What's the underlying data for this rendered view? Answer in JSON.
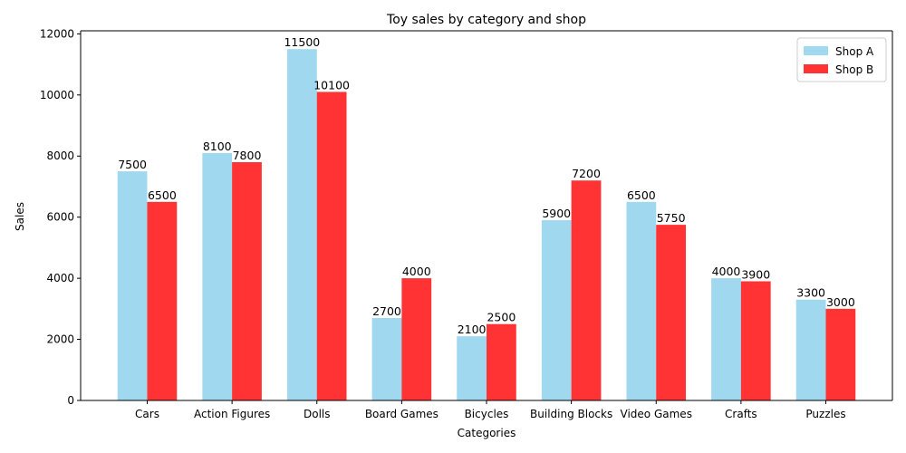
{
  "chart_data": {
    "type": "bar",
    "title": "Toy sales by category and shop",
    "xlabel": "Categories",
    "ylabel": "Sales",
    "categories": [
      "Cars",
      "Action Figures",
      "Dolls",
      "Board Games",
      "Bicycles",
      "Building Blocks",
      "Video Games",
      "Crafts",
      "Puzzles"
    ],
    "series": [
      {
        "name": "Shop A",
        "color": "#87CEEB",
        "values": [
          7500,
          8100,
          11500,
          2700,
          2100,
          5900,
          6500,
          4000,
          3300
        ]
      },
      {
        "name": "Shop B",
        "color": "#FF0000",
        "values": [
          6500,
          7800,
          10100,
          4000,
          2500,
          7200,
          5750,
          3900,
          3000
        ]
      }
    ],
    "ylim": [
      0,
      12100
    ],
    "yticks": [
      0,
      2000,
      4000,
      6000,
      8000,
      10000,
      12000
    ],
    "grid": false,
    "legend_position": "top-right",
    "data_labels": true
  }
}
